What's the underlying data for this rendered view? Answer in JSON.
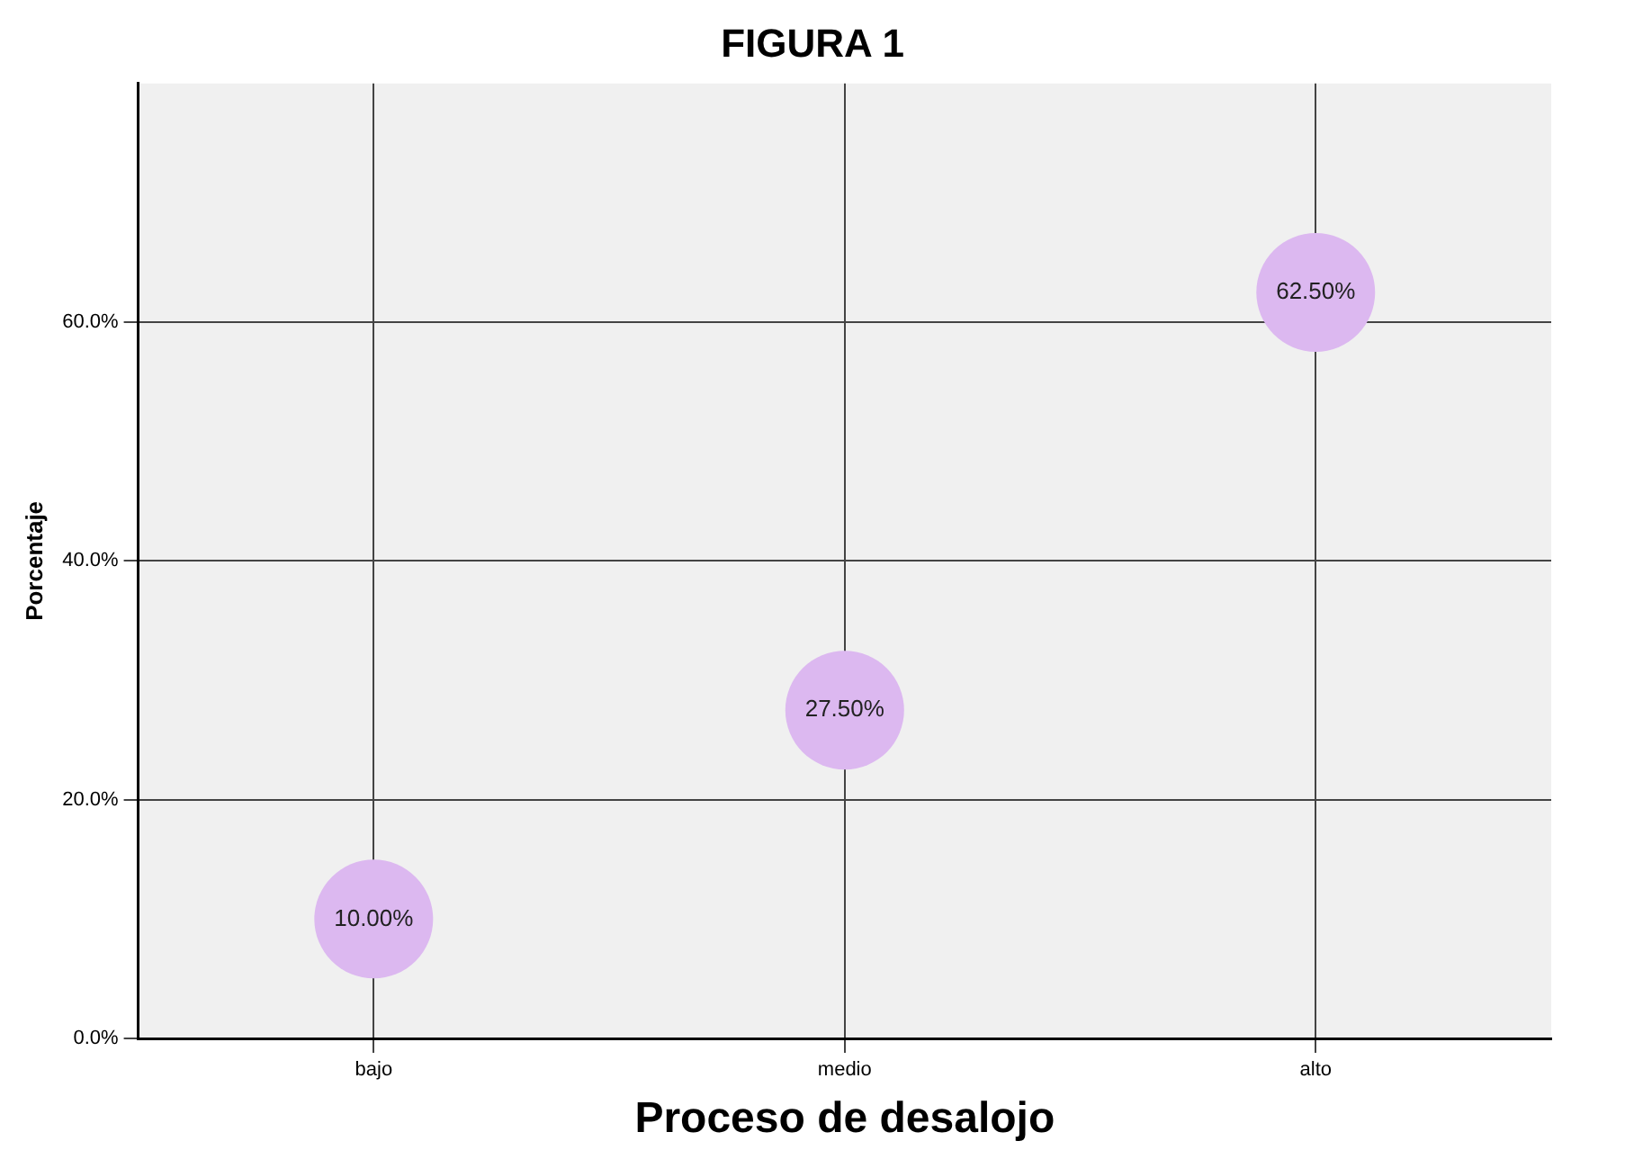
{
  "chart_data": {
    "type": "scatter",
    "title": "FIGURA 1",
    "xlabel": "Proceso de desalojo",
    "ylabel": "Porcentaje",
    "categories": [
      "bajo",
      "medio",
      "alto"
    ],
    "series": [
      {
        "color": "#dcb8f0",
        "values": [
          10,
          27.5,
          62.5
        ],
        "value_labels": [
          "10.00%",
          "27.50%",
          "62.50%"
        ]
      }
    ],
    "ylim": [
      0,
      80
    ],
    "yticks": [
      {
        "value": 0,
        "label": "0.0%"
      },
      {
        "value": 20,
        "label": "20.0%"
      },
      {
        "value": 40,
        "label": "40.0%"
      },
      {
        "value": 60,
        "label": "60.0%"
      }
    ],
    "grid": true,
    "marker": "circle",
    "legend": false
  }
}
